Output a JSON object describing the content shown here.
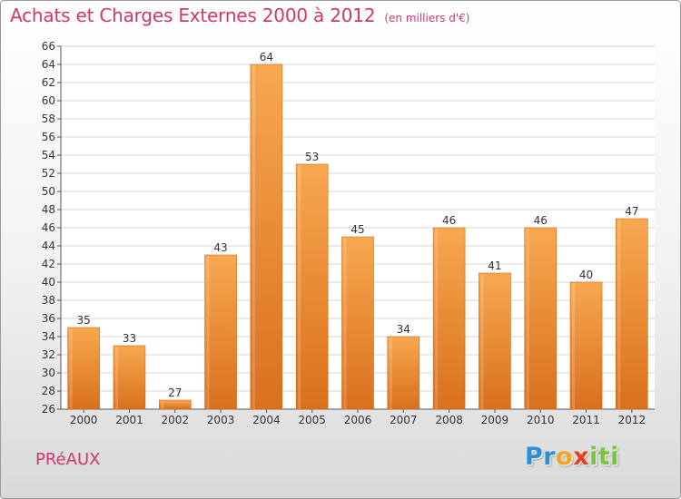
{
  "chart_data": {
    "type": "bar",
    "title": "Achats et Charges Externes 2000 à 2012",
    "subtitle": "(en milliers d'€)",
    "xlabel": "",
    "ylabel": "",
    "categories": [
      "2000",
      "2001",
      "2002",
      "2003",
      "2004",
      "2005",
      "2006",
      "2007",
      "2008",
      "2009",
      "2010",
      "2011",
      "2012"
    ],
    "values": [
      35,
      33,
      27,
      43,
      64,
      53,
      45,
      34,
      46,
      41,
      46,
      40,
      47
    ],
    "ylim": [
      26,
      66
    ],
    "yticks": [
      26,
      28,
      30,
      32,
      34,
      36,
      38,
      40,
      42,
      44,
      46,
      48,
      50,
      52,
      54,
      56,
      58,
      60,
      62,
      64,
      66
    ],
    "grid": true,
    "bar_color": "#e8882f",
    "bar_color_light": "#f7a84f",
    "data_labels": true
  },
  "footer": {
    "commune": "PRéAUX",
    "logo_letters": [
      {
        "ch": "P",
        "color": "#2f8fd6"
      },
      {
        "ch": "r",
        "color": "#2f8fd6"
      },
      {
        "ch": "o",
        "color": "#f2a61f"
      },
      {
        "ch": "x",
        "color": "#e8401f"
      },
      {
        "ch": "i",
        "color": "#7cc242"
      },
      {
        "ch": "t",
        "color": "#7cc242"
      },
      {
        "ch": "i",
        "color": "#7cc242"
      }
    ]
  }
}
